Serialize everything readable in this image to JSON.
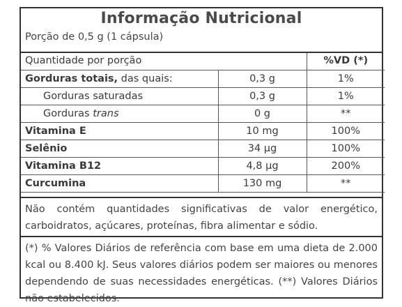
{
  "title": "Informação Nutricional",
  "serving": "Porção de 0,5 g (1 cápsula)",
  "table": {
    "header_left": "Quantidade por porção",
    "header_right": "%VD (*)",
    "rows": [
      {
        "name": "Gorduras totais,",
        "suffix": " das quais:",
        "amount": "0,3 g",
        "vd": "1%",
        "bold": true,
        "indent": false
      },
      {
        "name": "Gorduras saturadas",
        "suffix": "",
        "amount": "0,3 g",
        "vd": "1%",
        "bold": false,
        "indent": true
      },
      {
        "name": "Gorduras ",
        "suffix": "trans",
        "amount": "0 g",
        "vd": "**",
        "bold": false,
        "indent": true
      },
      {
        "name": "Vitamina E",
        "suffix": "",
        "amount": "10 mg",
        "vd": "100%",
        "bold": true,
        "indent": false
      },
      {
        "name": "Selênio",
        "suffix": "",
        "amount": "34 µg",
        "vd": "100%",
        "bold": true,
        "indent": false
      },
      {
        "name": "Vitamina B12",
        "suffix": "",
        "amount": "4,8 µg",
        "vd": "200%",
        "bold": true,
        "indent": false
      },
      {
        "name": "Curcumina",
        "suffix": "",
        "amount": "130 mg",
        "vd": "**",
        "bold": true,
        "indent": false
      }
    ]
  },
  "notes": {
    "insignificant": "Não contém quantidades significativas de valor energético, carboidratos, açúcares, proteínas, fibra alimentar e sódio.",
    "reference": "(*) % Valores Diários de referência com base em uma dieta de 2.000 kcal ou 8.400 kJ. Seus valores diários podem ser maiores ou menores dependendo de suas necessidades energéticas. (**) Valores Diários não estabelecidos."
  }
}
